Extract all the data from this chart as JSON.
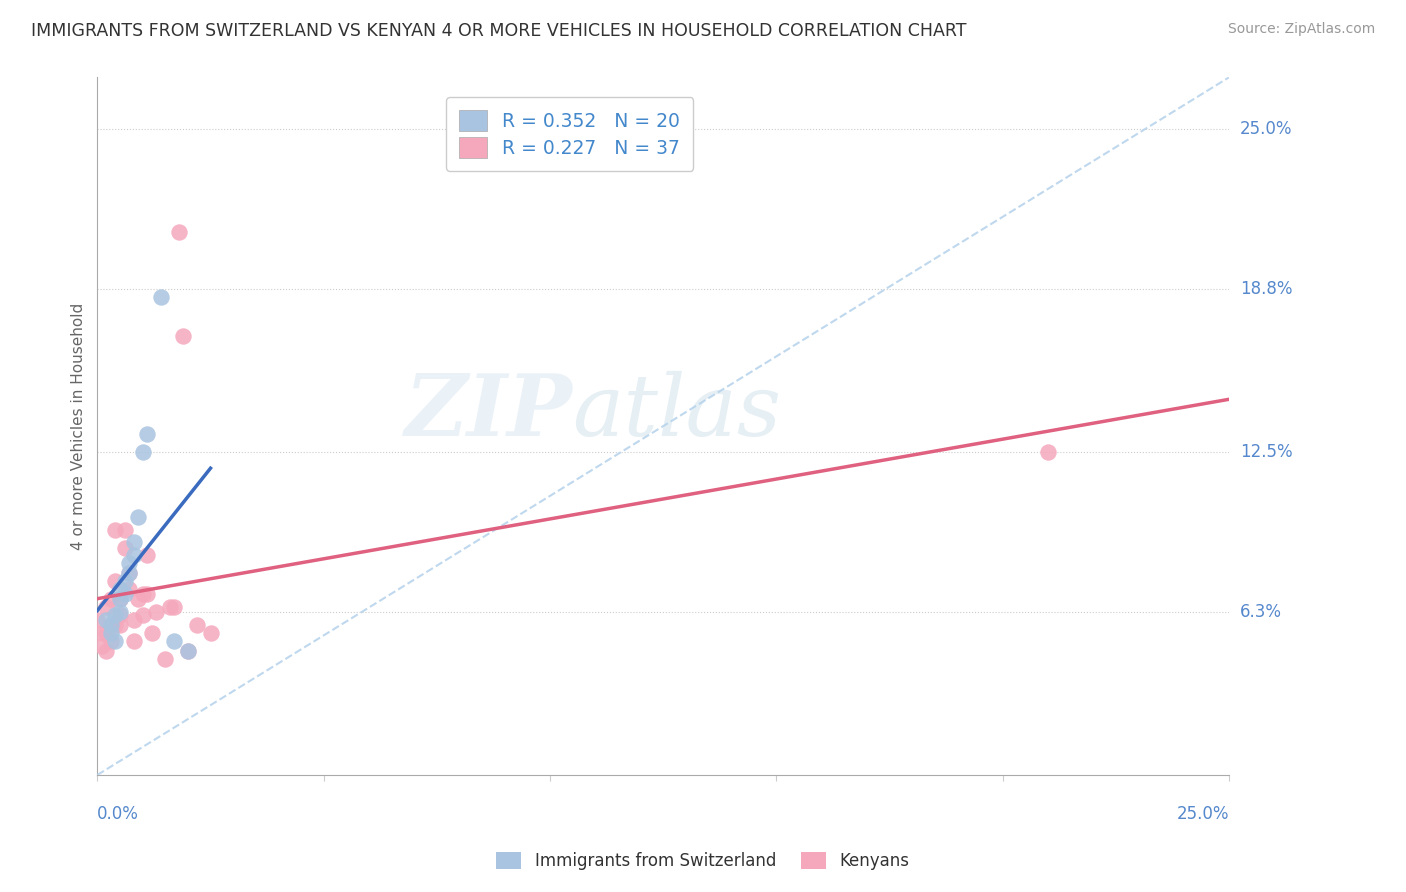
{
  "title": "IMMIGRANTS FROM SWITZERLAND VS KENYAN 4 OR MORE VEHICLES IN HOUSEHOLD CORRELATION CHART",
  "source": "Source: ZipAtlas.com",
  "ylabel": "4 or more Vehicles in Household",
  "ytick_labels": [
    "25.0%",
    "18.8%",
    "12.5%",
    "6.3%"
  ],
  "ytick_values": [
    0.25,
    0.188,
    0.125,
    0.063
  ],
  "xmin": 0.0,
  "xmax": 0.25,
  "ymin": 0.0,
  "ymax": 0.27,
  "legend_swiss_R": "R = 0.352",
  "legend_swiss_N": "N = 20",
  "legend_kenyan_R": "R = 0.227",
  "legend_kenyan_N": "N = 37",
  "swiss_color": "#a8c4e0",
  "kenyan_color": "#f5a8bc",
  "swiss_line_color": "#3a6bbf",
  "kenyan_line_color": "#e06080",
  "diagonal_color": "#b8d4ec",
  "watermark_zip": "ZIP",
  "watermark_atlas": "atlas",
  "swiss_x": [
    0.002,
    0.003,
    0.003,
    0.004,
    0.004,
    0.005,
    0.005,
    0.005,
    0.006,
    0.006,
    0.007,
    0.007,
    0.008,
    0.008,
    0.009,
    0.01,
    0.011,
    0.014,
    0.017,
    0.02
  ],
  "swiss_y": [
    0.06,
    0.058,
    0.055,
    0.062,
    0.052,
    0.072,
    0.068,
    0.063,
    0.075,
    0.07,
    0.082,
    0.078,
    0.09,
    0.085,
    0.1,
    0.125,
    0.132,
    0.185,
    0.052,
    0.048
  ],
  "kenyan_x": [
    0.0,
    0.001,
    0.001,
    0.002,
    0.002,
    0.002,
    0.003,
    0.003,
    0.003,
    0.004,
    0.004,
    0.004,
    0.005,
    0.005,
    0.005,
    0.006,
    0.006,
    0.007,
    0.007,
    0.008,
    0.008,
    0.009,
    0.01,
    0.01,
    0.011,
    0.011,
    0.012,
    0.013,
    0.015,
    0.016,
    0.017,
    0.018,
    0.019,
    0.02,
    0.022,
    0.025,
    0.21
  ],
  "kenyan_y": [
    0.06,
    0.055,
    0.05,
    0.048,
    0.055,
    0.065,
    0.052,
    0.058,
    0.068,
    0.095,
    0.075,
    0.058,
    0.068,
    0.062,
    0.058,
    0.095,
    0.088,
    0.078,
    0.072,
    0.06,
    0.052,
    0.068,
    0.07,
    0.062,
    0.085,
    0.07,
    0.055,
    0.063,
    0.045,
    0.065,
    0.065,
    0.21,
    0.17,
    0.048,
    0.058,
    0.055,
    0.125
  ],
  "swiss_line_x": [
    0.0,
    0.025
  ],
  "kenyan_line_x": [
    0.0,
    0.25
  ]
}
